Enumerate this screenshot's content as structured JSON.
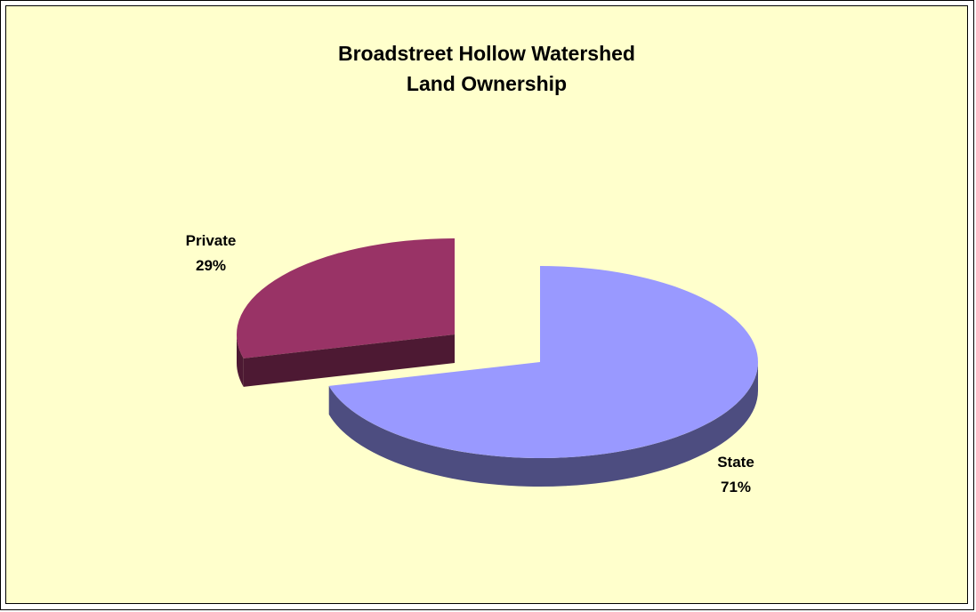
{
  "chart_data": {
    "type": "pie",
    "style": "3d-exploded",
    "title": "Broadstreet Hollow Watershed Land Ownership",
    "title_lines": [
      "Broadstreet Hollow Watershed",
      "Land Ownership"
    ],
    "slices": [
      {
        "category": "Private",
        "value": 29,
        "label": "Private",
        "percent_label": "29%",
        "color": "#993366",
        "side_color": "#4d1933"
      },
      {
        "category": "State",
        "value": 71,
        "label": "State",
        "percent_label": "71%",
        "color": "#9999ff",
        "side_color": "#4d4d80"
      }
    ],
    "background_color": "#ffffcc"
  }
}
